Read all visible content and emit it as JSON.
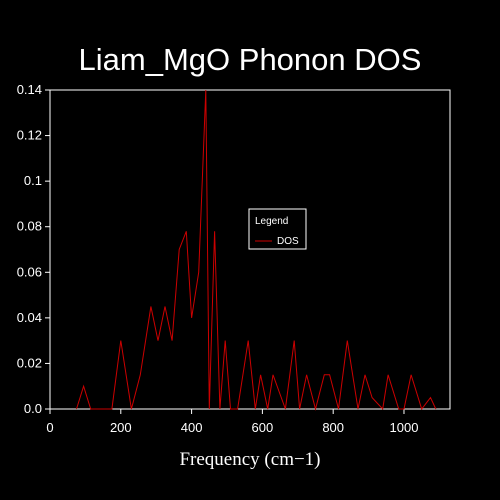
{
  "colors": {
    "background": "#000000",
    "axes": "#ffffff",
    "series": "#cc0000"
  },
  "chart_data": {
    "type": "line",
    "title": "Liam_MgO Phonon DOS",
    "xlabel": "Frequency (cm−1)",
    "ylabel": "",
    "xlim": [
      0,
      1130
    ],
    "ylim": [
      0,
      0.14
    ],
    "xticks": [
      0,
      200,
      400,
      600,
      800,
      1000
    ],
    "yticks": [
      0.0,
      0.02,
      0.04,
      0.06,
      0.08,
      0.1,
      0.12,
      0.14
    ],
    "xtick_labels": [
      "0",
      "200",
      "400",
      "600",
      "800",
      "1000"
    ],
    "ytick_labels": [
      "0.0",
      "0.02",
      "0.04",
      "0.06",
      "0.08",
      "0.1",
      "0.12",
      "0.14"
    ],
    "grid": false,
    "legend": {
      "title": "Legend",
      "position": "center-right",
      "entries": [
        "DOS"
      ]
    },
    "series": [
      {
        "name": "DOS",
        "x": [
          75,
          95,
          115,
          175,
          200,
          230,
          255,
          285,
          305,
          325,
          345,
          365,
          385,
          400,
          420,
          440,
          450,
          465,
          480,
          495,
          510,
          530,
          545,
          560,
          580,
          595,
          615,
          630,
          665,
          690,
          705,
          725,
          750,
          775,
          790,
          815,
          840,
          870,
          890,
          910,
          940,
          955,
          985,
          1000,
          1020,
          1050,
          1075,
          1090
        ],
        "y": [
          0.0,
          0.01,
          0.0,
          0.0,
          0.03,
          0.0,
          0.015,
          0.045,
          0.03,
          0.045,
          0.03,
          0.07,
          0.078,
          0.04,
          0.06,
          0.14,
          0.0,
          0.078,
          0.0,
          0.03,
          0.0,
          0.0,
          0.015,
          0.03,
          0.0,
          0.015,
          0.0,
          0.015,
          0.0,
          0.03,
          0.0,
          0.015,
          0.0,
          0.015,
          0.015,
          0.0,
          0.03,
          0.0,
          0.015,
          0.005,
          0.0,
          0.015,
          0.0,
          0.0,
          0.015,
          0.0,
          0.005,
          0.0
        ]
      }
    ]
  }
}
